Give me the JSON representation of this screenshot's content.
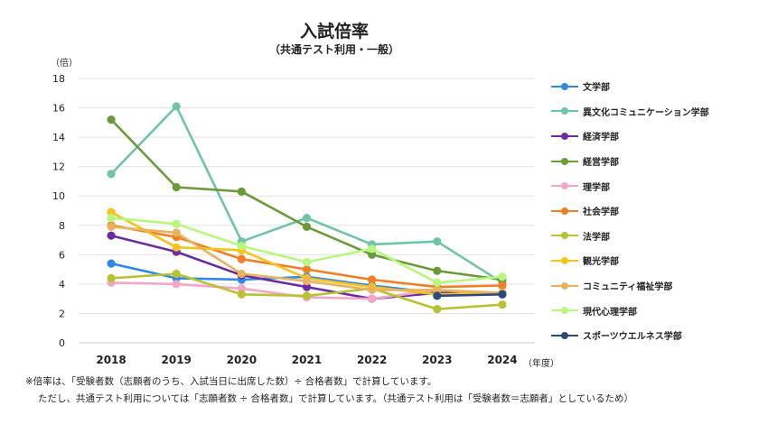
{
  "chart_data": {
    "type": "line",
    "title": "入試倍率",
    "subtitle": "（共通テスト利用・一般）",
    "ylabel_unit": "（倍）",
    "xlabel_unit": "（年度）",
    "x": [
      "2018",
      "2019",
      "2020",
      "2021",
      "2022",
      "2023",
      "2024"
    ],
    "ylim": [
      0,
      18
    ],
    "yticks": [
      "0",
      "2",
      "4",
      "6",
      "8",
      "10",
      "12",
      "14",
      "16",
      "18"
    ],
    "grid": true,
    "legend_position": "right",
    "series": [
      {
        "name": "文学部",
        "color": "#2e8ae6",
        "values": [
          5.4,
          4.4,
          4.3,
          4.5,
          3.9,
          3.4,
          3.3
        ]
      },
      {
        "name": "異文化コミュニケーション学部",
        "color": "#6fc4a8",
        "values": [
          11.5,
          16.1,
          6.9,
          8.5,
          6.7,
          6.9,
          4.1
        ]
      },
      {
        "name": "経済学部",
        "color": "#6a2ca0",
        "values": [
          7.3,
          6.2,
          4.6,
          3.8,
          3.0,
          3.4,
          3.4
        ]
      },
      {
        "name": "経営学部",
        "color": "#6a9a3a",
        "values": [
          15.2,
          10.6,
          10.3,
          7.9,
          6.0,
          4.9,
          4.3
        ]
      },
      {
        "name": "理学部",
        "color": "#f4a6c6",
        "values": [
          4.1,
          4.0,
          3.7,
          3.1,
          3.0,
          3.6,
          3.3
        ]
      },
      {
        "name": "社会学部",
        "color": "#ef7f24",
        "values": [
          8.0,
          7.2,
          5.7,
          5.0,
          4.3,
          3.8,
          3.9
        ]
      },
      {
        "name": "法学部",
        "color": "#b8c232",
        "values": [
          4.4,
          4.7,
          3.3,
          3.2,
          3.7,
          2.3,
          2.6
        ]
      },
      {
        "name": "観光学部",
        "color": "#f6c21c",
        "values": [
          8.9,
          6.5,
          6.3,
          4.4,
          3.8,
          3.3,
          3.4
        ]
      },
      {
        "name": "コミュニティ福祉学部",
        "color": "#e8b35f",
        "values": [
          7.9,
          7.5,
          4.7,
          4.2,
          3.6,
          3.6,
          3.4
        ]
      },
      {
        "name": "現代心理学部",
        "color": "#b6f77c",
        "values": [
          8.5,
          8.1,
          6.6,
          5.5,
          6.4,
          4.1,
          4.5
        ]
      },
      {
        "name": "スポーツウエルネス学部",
        "color": "#2b4a7e",
        "values": [
          null,
          null,
          null,
          null,
          null,
          3.2,
          3.3
        ]
      }
    ]
  },
  "notes": {
    "line1": "※倍率は、「受験者数（志願者のうち、入試当日に出席した数）÷ 合格者数」で計算しています。",
    "line2": "ただし、共通テスト利用については「志願者数 ÷ 合格者数」で計算しています。（共通テスト利用は「受験者数＝志願者」としているため）"
  }
}
